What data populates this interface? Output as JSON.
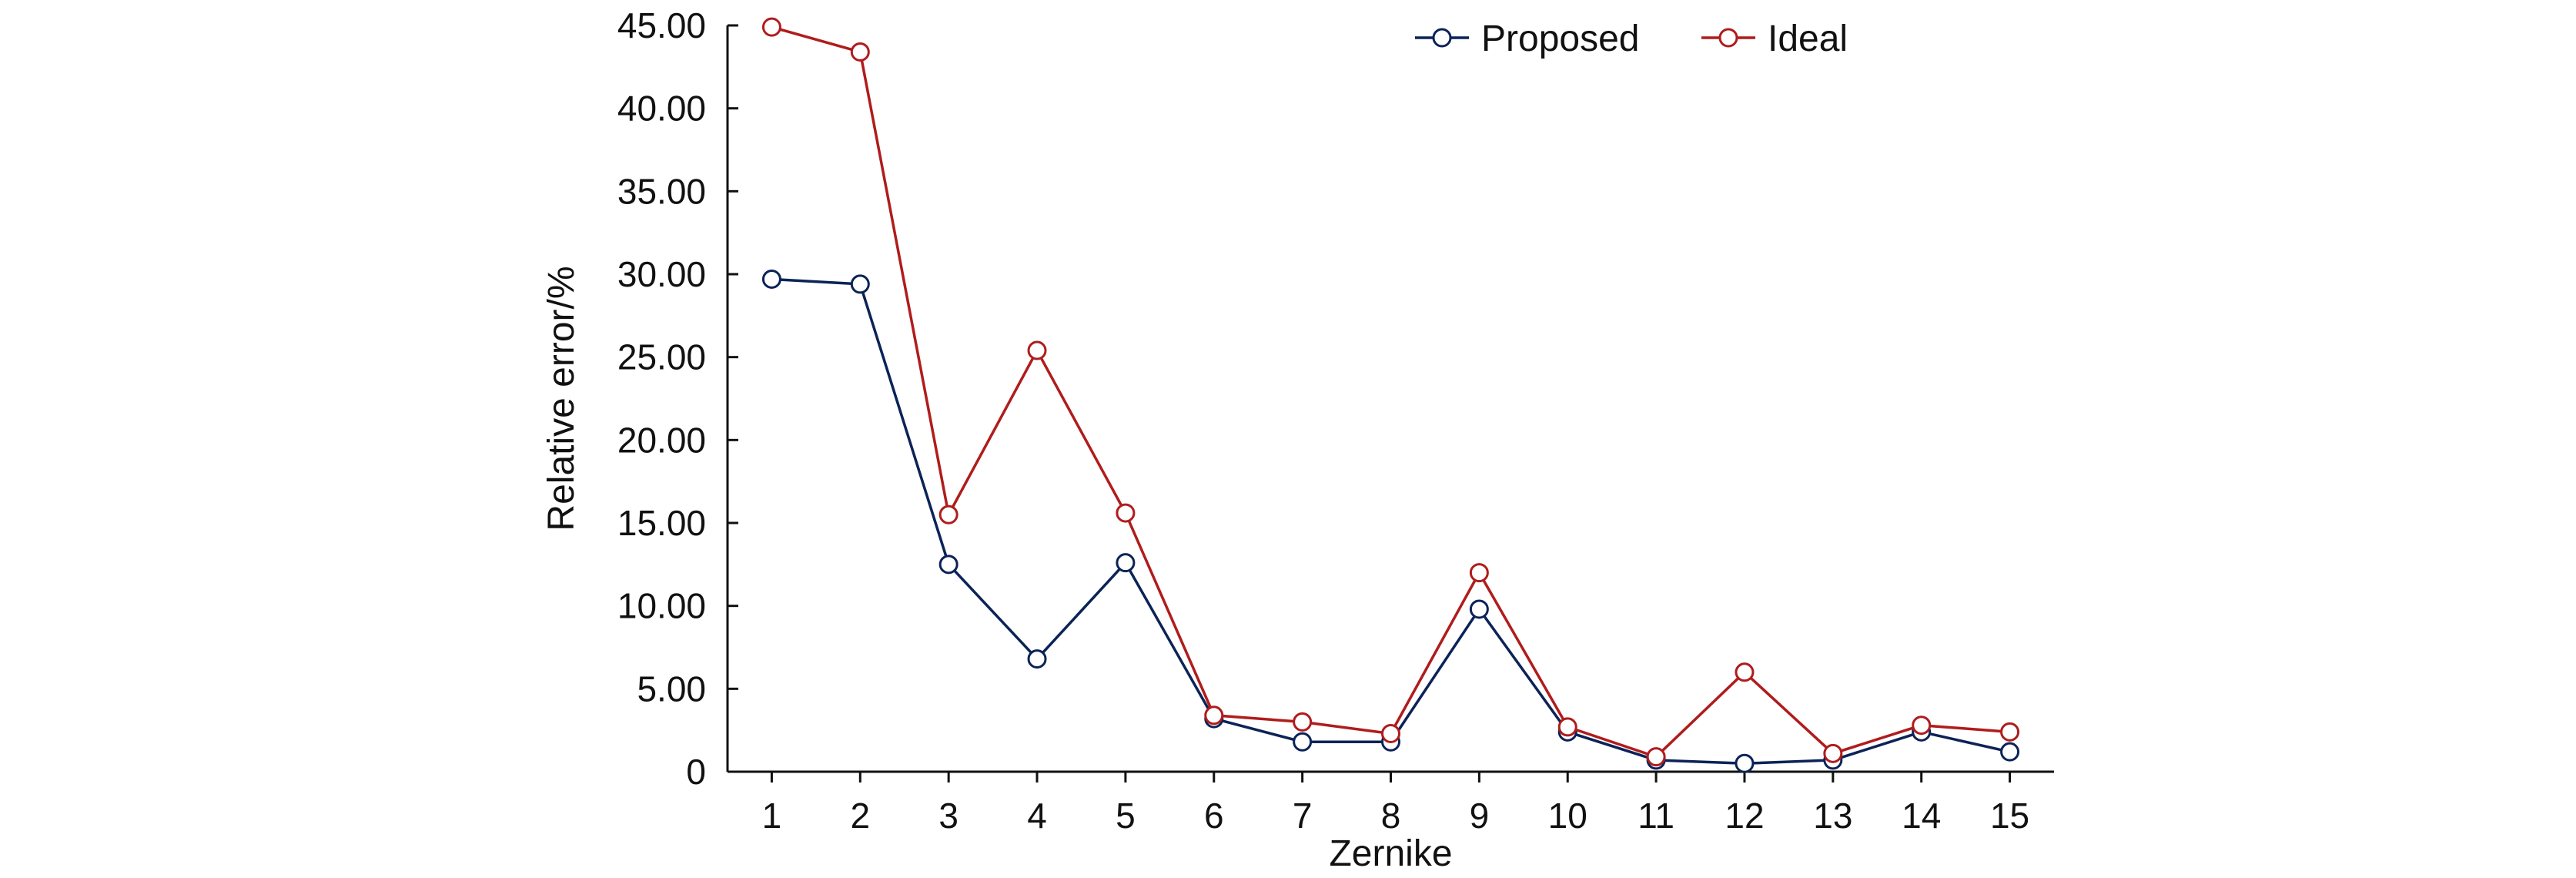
{
  "chart_data": {
    "type": "line",
    "title": "",
    "xlabel": "Zernike",
    "ylabel": "Relative error/%",
    "x": [
      1,
      2,
      3,
      4,
      5,
      6,
      7,
      8,
      9,
      10,
      11,
      12,
      13,
      14,
      15
    ],
    "x_tick_labels": [
      "1",
      "2",
      "3",
      "4",
      "5",
      "6",
      "7",
      "8",
      "9",
      "10",
      "11",
      "12",
      "13",
      "14",
      "15"
    ],
    "y_tick_labels": [
      "0",
      "5.00",
      "10.00",
      "15.00",
      "20.00",
      "25.00",
      "30.00",
      "35.00",
      "40.00",
      "45.00"
    ],
    "y_ticks": [
      0,
      5,
      10,
      15,
      20,
      25,
      30,
      35,
      40,
      45
    ],
    "xlim": [
      0.5,
      15.5
    ],
    "ylim": [
      0,
      45
    ],
    "grid": false,
    "legend_position": "top-center",
    "series": [
      {
        "name": "Proposed",
        "color": "#0b2357",
        "marker": "open-circle",
        "values": [
          29.7,
          29.4,
          12.5,
          6.8,
          12.6,
          3.2,
          1.8,
          1.8,
          9.8,
          2.4,
          0.7,
          0.5,
          0.7,
          2.4,
          1.2
        ]
      },
      {
        "name": "Ideal",
        "color": "#b01c1c",
        "marker": "open-circle",
        "values": [
          44.9,
          43.4,
          15.5,
          25.4,
          15.6,
          3.4,
          3.0,
          2.3,
          12.0,
          2.7,
          0.9,
          6.0,
          1.1,
          2.8,
          2.4
        ]
      }
    ]
  }
}
